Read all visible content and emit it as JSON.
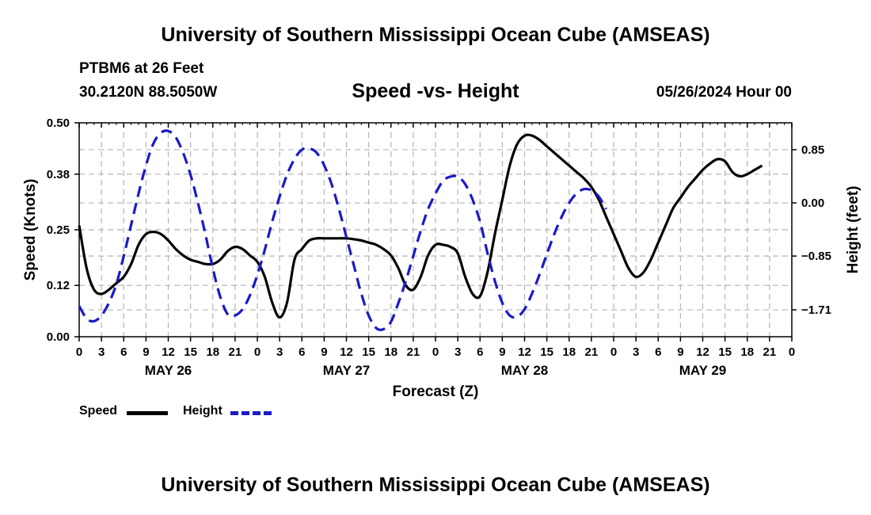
{
  "page": {
    "title": "University of Southern Mississippi Ocean Cube (AMSEAS)",
    "footer_title": "University of Southern Mississippi Ocean Cube (AMSEAS)",
    "station": "PTBM6 at 26 Feet",
    "coords": "30.2120N  88.5050W",
    "subtitle": "Speed -vs- Height",
    "datetime": "05/26/2024 Hour 00"
  },
  "legend": {
    "speed_label": "Speed",
    "height_label": "Height"
  },
  "colors": {
    "speed": "#000000",
    "height": "#1a1ac8",
    "grid": "#b4b4b4"
  },
  "chart_data": {
    "type": "line",
    "title": "Speed -vs- Height",
    "xlabel": "Forecast (Z)",
    "ylabel": "Speed (Knots)",
    "y2label": "Height (feet)",
    "xlim": [
      0,
      96
    ],
    "ylim": [
      0,
      0.5
    ],
    "y2lim": [
      -2.14,
      1.28
    ],
    "yticks": [
      0.0,
      0.12,
      0.25,
      0.38,
      0.5
    ],
    "ytick_labels": [
      "0.00",
      "0.12",
      "0.25",
      "0.38",
      "0.50"
    ],
    "y2ticks": [
      -1.71,
      -0.85,
      0.0,
      0.85
    ],
    "y2tick_labels": [
      "−1.71",
      "−0.85",
      "0.00",
      "0.85"
    ],
    "xticks": [
      0,
      3,
      6,
      9,
      12,
      15,
      18,
      21,
      24,
      27,
      30,
      33,
      36,
      39,
      42,
      45,
      48,
      51,
      54,
      57,
      60,
      63,
      66,
      69,
      72,
      75,
      78,
      81,
      84,
      87,
      90,
      93,
      96
    ],
    "xtick_labels": [
      "0",
      "3",
      "6",
      "9",
      "12",
      "15",
      "18",
      "21",
      "0",
      "3",
      "6",
      "9",
      "12",
      "15",
      "18",
      "21",
      "0",
      "3",
      "6",
      "9",
      "12",
      "15",
      "18",
      "21",
      "0",
      "3",
      "6",
      "9",
      "12",
      "15",
      "18",
      "21",
      "0"
    ],
    "day_labels": [
      {
        "label": "MAY 26",
        "x": 12
      },
      {
        "label": "MAY 27",
        "x": 36
      },
      {
        "label": "MAY 28",
        "x": 60
      },
      {
        "label": "MAY 29",
        "x": 84
      }
    ],
    "grid": true,
    "series": [
      {
        "name": "Speed",
        "axis": "left",
        "style": "solid",
        "points": [
          [
            0,
            0.26
          ],
          [
            1,
            0.16
          ],
          [
            2,
            0.11
          ],
          [
            3,
            0.1
          ],
          [
            4,
            0.11
          ],
          [
            5,
            0.125
          ],
          [
            6,
            0.14
          ],
          [
            7,
            0.17
          ],
          [
            8,
            0.215
          ],
          [
            9,
            0.24
          ],
          [
            10,
            0.245
          ],
          [
            11,
            0.24
          ],
          [
            12,
            0.225
          ],
          [
            13,
            0.205
          ],
          [
            14,
            0.19
          ],
          [
            15,
            0.18
          ],
          [
            16,
            0.175
          ],
          [
            17,
            0.17
          ],
          [
            18,
            0.17
          ],
          [
            19,
            0.18
          ],
          [
            20,
            0.2
          ],
          [
            21,
            0.21
          ],
          [
            22,
            0.205
          ],
          [
            23,
            0.19
          ],
          [
            24,
            0.175
          ],
          [
            25,
            0.14
          ],
          [
            26,
            0.08
          ],
          [
            27,
            0.045
          ],
          [
            28,
            0.08
          ],
          [
            29,
            0.18
          ],
          [
            30,
            0.205
          ],
          [
            31,
            0.225
          ],
          [
            32,
            0.23
          ],
          [
            33,
            0.23
          ],
          [
            34,
            0.23
          ],
          [
            35,
            0.23
          ],
          [
            36,
            0.23
          ],
          [
            37,
            0.228
          ],
          [
            38,
            0.225
          ],
          [
            39,
            0.22
          ],
          [
            40,
            0.215
          ],
          [
            41,
            0.205
          ],
          [
            42,
            0.19
          ],
          [
            43,
            0.16
          ],
          [
            44,
            0.12
          ],
          [
            45,
            0.11
          ],
          [
            46,
            0.14
          ],
          [
            47,
            0.19
          ],
          [
            48,
            0.215
          ],
          [
            49,
            0.215
          ],
          [
            50,
            0.21
          ],
          [
            51,
            0.195
          ],
          [
            52,
            0.14
          ],
          [
            53,
            0.1
          ],
          [
            54,
            0.095
          ],
          [
            55,
            0.15
          ],
          [
            56,
            0.24
          ],
          [
            57,
            0.32
          ],
          [
            58,
            0.4
          ],
          [
            59,
            0.45
          ],
          [
            60,
            0.47
          ],
          [
            61,
            0.47
          ],
          [
            62,
            0.46
          ],
          [
            63,
            0.445
          ],
          [
            64,
            0.43
          ],
          [
            65,
            0.415
          ],
          [
            66,
            0.4
          ],
          [
            67,
            0.385
          ],
          [
            68,
            0.37
          ],
          [
            69,
            0.35
          ],
          [
            70,
            0.32
          ],
          [
            71,
            0.28
          ],
          [
            72,
            0.24
          ],
          [
            73,
            0.2
          ],
          [
            74,
            0.16
          ],
          [
            75,
            0.14
          ],
          [
            76,
            0.15
          ],
          [
            77,
            0.18
          ],
          [
            78,
            0.22
          ],
          [
            79,
            0.26
          ],
          [
            80,
            0.3
          ],
          [
            81,
            0.325
          ],
          [
            82,
            0.35
          ],
          [
            83,
            0.37
          ],
          [
            84,
            0.39
          ],
          [
            85,
            0.405
          ],
          [
            86,
            0.415
          ],
          [
            87,
            0.41
          ],
          [
            88,
            0.385
          ],
          [
            89,
            0.375
          ],
          [
            90,
            0.38
          ],
          [
            91,
            0.39
          ],
          [
            92,
            0.4
          ]
        ]
      },
      {
        "name": "Height",
        "axis": "right",
        "style": "dashed",
        "points": [
          [
            0,
            -1.65
          ],
          [
            1,
            -1.85
          ],
          [
            2,
            -1.89
          ],
          [
            3,
            -1.8
          ],
          [
            4,
            -1.6
          ],
          [
            5,
            -1.3
          ],
          [
            6,
            -0.85
          ],
          [
            7,
            -0.35
          ],
          [
            8,
            0.15
          ],
          [
            9,
            0.6
          ],
          [
            10,
            0.95
          ],
          [
            11,
            1.12
          ],
          [
            12,
            1.15
          ],
          [
            13,
            1.05
          ],
          [
            14,
            0.8
          ],
          [
            15,
            0.45
          ],
          [
            16,
            0.0
          ],
          [
            17,
            -0.5
          ],
          [
            18,
            -1.05
          ],
          [
            19,
            -1.5
          ],
          [
            20,
            -1.78
          ],
          [
            21,
            -1.8
          ],
          [
            22,
            -1.7
          ],
          [
            23,
            -1.48
          ],
          [
            24,
            -1.15
          ],
          [
            25,
            -0.75
          ],
          [
            26,
            -0.3
          ],
          [
            27,
            0.1
          ],
          [
            28,
            0.45
          ],
          [
            29,
            0.7
          ],
          [
            30,
            0.85
          ],
          [
            31,
            0.87
          ],
          [
            32,
            0.8
          ],
          [
            33,
            0.6
          ],
          [
            34,
            0.3
          ],
          [
            35,
            -0.1
          ],
          [
            36,
            -0.55
          ],
          [
            37,
            -1.0
          ],
          [
            38,
            -1.45
          ],
          [
            39,
            -1.8
          ],
          [
            40,
            -2.0
          ],
          [
            41,
            -2.02
          ],
          [
            42,
            -1.9
          ],
          [
            43,
            -1.6
          ],
          [
            44,
            -1.25
          ],
          [
            45,
            -0.85
          ],
          [
            46,
            -0.45
          ],
          [
            47,
            -0.1
          ],
          [
            48,
            0.15
          ],
          [
            49,
            0.35
          ],
          [
            50,
            0.42
          ],
          [
            51,
            0.42
          ],
          [
            52,
            0.3
          ],
          [
            53,
            0.05
          ],
          [
            54,
            -0.3
          ],
          [
            55,
            -0.8
          ],
          [
            56,
            -1.25
          ],
          [
            57,
            -1.6
          ],
          [
            58,
            -1.8
          ],
          [
            59,
            -1.82
          ],
          [
            60,
            -1.7
          ],
          [
            61,
            -1.45
          ],
          [
            62,
            -1.15
          ],
          [
            63,
            -0.82
          ],
          [
            64,
            -0.5
          ],
          [
            65,
            -0.22
          ],
          [
            66,
            0.0
          ],
          [
            67,
            0.15
          ],
          [
            68,
            0.22
          ],
          [
            69,
            0.2
          ],
          [
            70,
            0.1
          ],
          [
            71,
            -0.1
          ]
        ]
      }
    ]
  }
}
